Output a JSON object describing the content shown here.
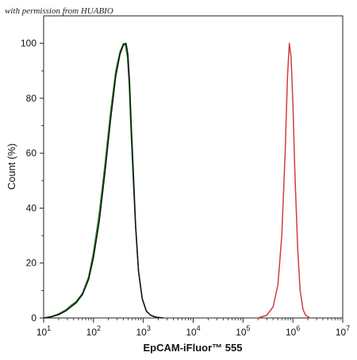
{
  "watermark": "with permission from HUABIO",
  "chart_data": {
    "type": "line",
    "title": "",
    "xlabel": "EpCAM-iFluor™ 555",
    "ylabel": "Count (%)",
    "xscale": "log",
    "xlim": [
      10,
      10000000
    ],
    "ylim": [
      0,
      110
    ],
    "xticks": [
      {
        "value": 10,
        "mantissa": "10",
        "exp": "1"
      },
      {
        "value": 100,
        "mantissa": "10",
        "exp": "2"
      },
      {
        "value": 1000,
        "mantissa": "10",
        "exp": "3"
      },
      {
        "value": 10000,
        "mantissa": "10",
        "exp": "4"
      },
      {
        "value": 100000,
        "mantissa": "10",
        "exp": "5"
      },
      {
        "value": 1000000,
        "mantissa": "10",
        "exp": "6"
      },
      {
        "value": 10000000,
        "mantissa": "10",
        "exp": "7"
      }
    ],
    "yticks": [
      0,
      20,
      40,
      60,
      80,
      100
    ],
    "grid": false,
    "legend": "none",
    "series": [
      {
        "color": "#2e8b2e",
        "x": [
          10,
          14,
          20,
          28,
          35,
          45,
          60,
          80,
          100,
          130,
          170,
          220,
          280,
          340,
          400,
          440,
          480,
          520,
          560,
          620,
          700,
          800,
          950,
          1150,
          1400,
          1800,
          2500
        ],
        "y": [
          0,
          0.5,
          1.5,
          3,
          4.5,
          6,
          9,
          15,
          24,
          38,
          56,
          75,
          90,
          97,
          100,
          99,
          95,
          85,
          70,
          52,
          33,
          17,
          7,
          2.5,
          1,
          0.3,
          0
        ]
      },
      {
        "color": "#111111",
        "x": [
          10,
          14,
          20,
          28,
          35,
          45,
          60,
          80,
          100,
          130,
          170,
          220,
          280,
          340,
          400,
          450,
          490,
          530,
          570,
          630,
          700,
          800,
          950,
          1150,
          1400,
          1800,
          2500
        ],
        "y": [
          0,
          0.4,
          1.2,
          2.6,
          4,
          5.5,
          8.5,
          14,
          22,
          35,
          53,
          72,
          88,
          96,
          99.5,
          100,
          96,
          86,
          71,
          53,
          34,
          17,
          7,
          2.5,
          1,
          0.3,
          0
        ]
      },
      {
        "color": "#d23c3c",
        "x": [
          200000,
          300000,
          400000,
          500000,
          600000,
          700000,
          780000,
          850000,
          920000,
          1000000,
          1100000,
          1250000,
          1400000,
          1600000,
          1800000,
          2200000
        ],
        "y": [
          0,
          1,
          4,
          12,
          30,
          60,
          88,
          100,
          95,
          78,
          52,
          25,
          10,
          3,
          1,
          0
        ]
      }
    ]
  }
}
